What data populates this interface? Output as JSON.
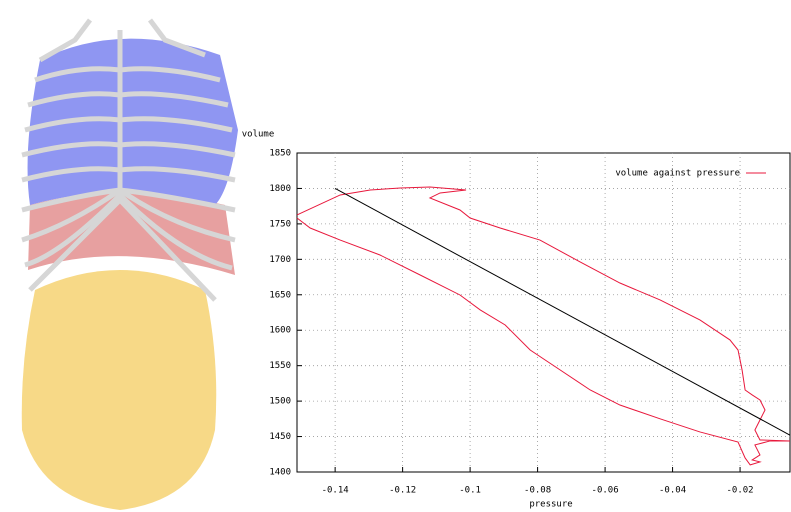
{
  "chart_data": {
    "type": "line",
    "ylabel": "volume",
    "xlabel": "pressure",
    "xlim": [
      -0.1513,
      -0.0052
    ],
    "ylim": [
      1400,
      1850
    ],
    "xticks": [
      -0.14,
      -0.12,
      -0.1,
      -0.08,
      -0.06,
      -0.04,
      -0.02
    ],
    "yticks": [
      1400,
      1450,
      1500,
      1550,
      1600,
      1650,
      1700,
      1750,
      1800,
      1850
    ],
    "grid": true,
    "legend": "top-right",
    "series": [
      {
        "name": "volume against pressure",
        "color": "#e8183c",
        "x": [
          -0.1513,
          -0.1385,
          -0.1296,
          -0.1207,
          -0.1119,
          -0.1012,
          -0.1089,
          -0.1119,
          -0.103,
          -0.1,
          -0.0911,
          -0.0793,
          -0.0674,
          -0.0556,
          -0.0437,
          -0.0319,
          -0.023,
          -0.0206,
          -0.0194,
          -0.0185,
          -0.0164,
          -0.0141,
          -0.0126,
          -0.0141,
          -0.0156,
          -0.0141,
          -0.0052,
          -0.0111,
          -0.0156,
          -0.0141,
          -0.0164,
          -0.0141,
          -0.017,
          -0.0185,
          -0.0206,
          -0.0319,
          -0.0437,
          -0.0556,
          -0.0644,
          -0.0733,
          -0.0822,
          -0.0896,
          -0.097,
          -0.103,
          -0.1148,
          -0.1267,
          -0.1385,
          -0.1474,
          -0.1513
        ],
        "values": [
          1762.6,
          1790.8,
          1797.8,
          1800.6,
          1802,
          1797.8,
          1793.6,
          1786.6,
          1769.6,
          1758.3,
          1744.2,
          1727.2,
          1696.3,
          1666.6,
          1642.7,
          1614.5,
          1586.3,
          1572.1,
          1543.9,
          1515.7,
          1508.7,
          1501.6,
          1487.5,
          1473.4,
          1459.3,
          1445.2,
          1443.8,
          1443.8,
          1438.2,
          1424.1,
          1417,
          1414.2,
          1410,
          1419.8,
          1442.3,
          1456.5,
          1475,
          1494.5,
          1515.7,
          1543.9,
          1572.1,
          1607.4,
          1628.6,
          1649.7,
          1677.9,
          1706.1,
          1727.2,
          1744.2,
          1758.3
        ]
      },
      {
        "color": "#000000",
        "x": [
          -0.14,
          -0.0052
        ],
        "values": [
          1800,
          1452
        ]
      }
    ]
  }
}
